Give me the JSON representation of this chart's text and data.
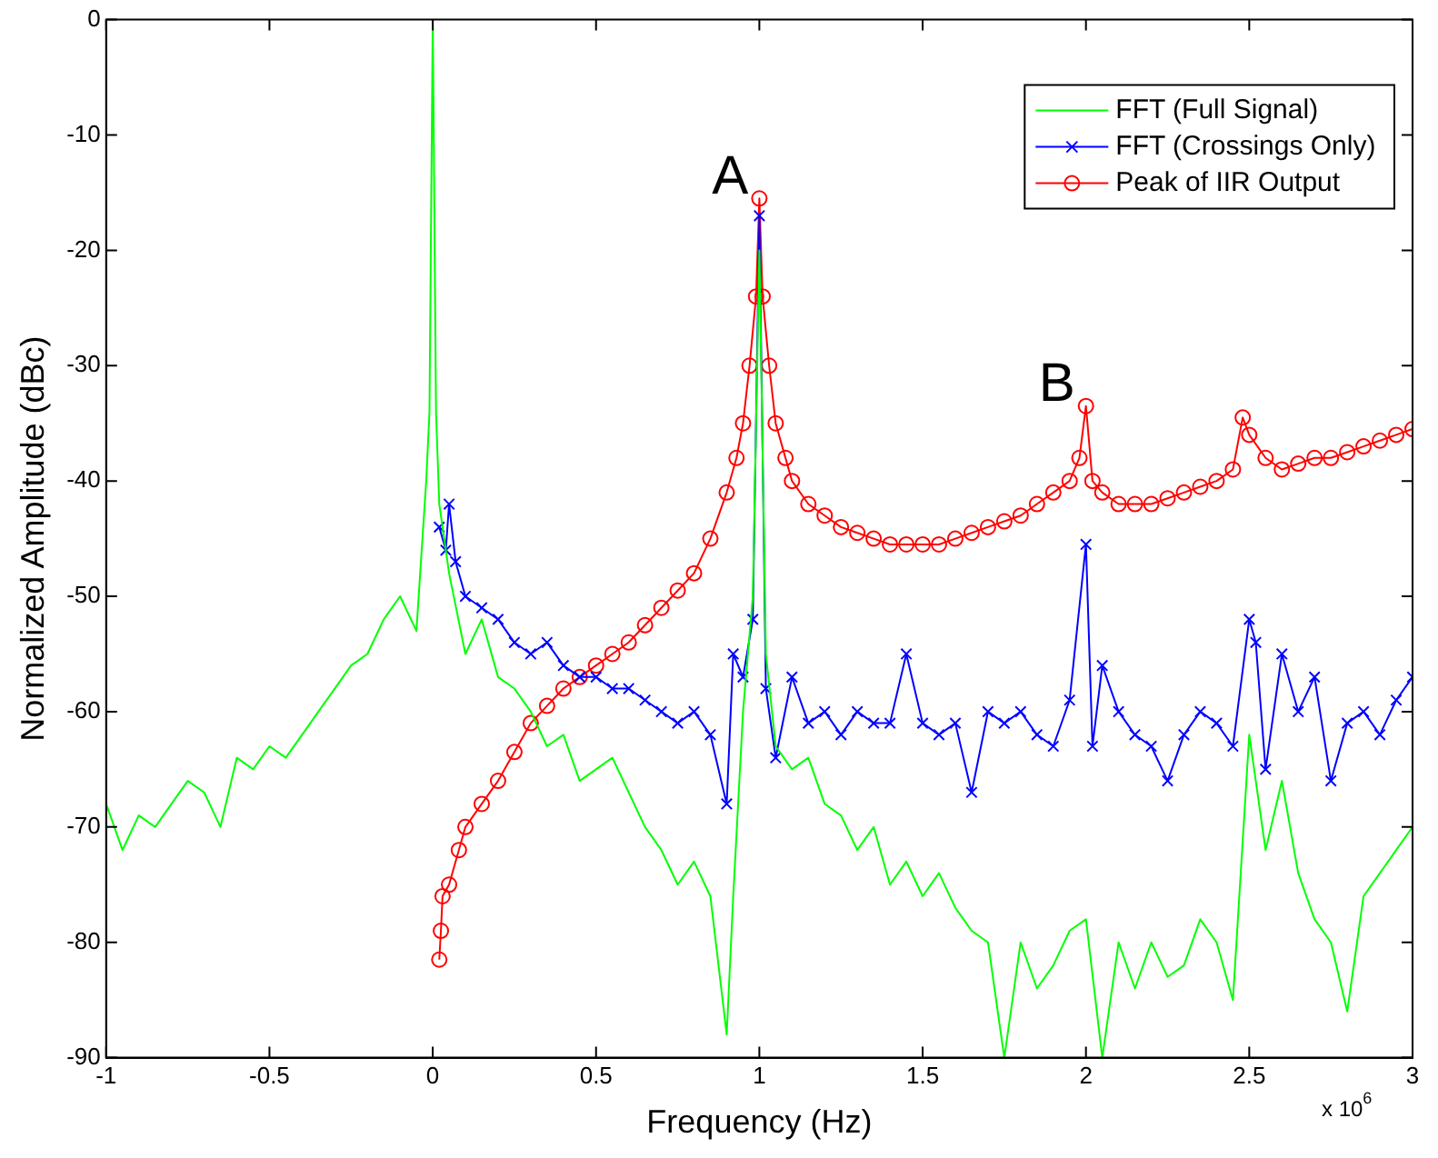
{
  "chart_data": {
    "type": "line",
    "xlabel": "Frequency (Hz)",
    "ylabel": "Normalized Amplitude (dBc)",
    "xlim": [
      -1,
      3
    ],
    "xticks": [
      -1,
      -0.5,
      0,
      0.5,
      1,
      1.5,
      2,
      2.5,
      3
    ],
    "ylim": [
      -90,
      0
    ],
    "yticks": [
      -90,
      -80,
      -70,
      -60,
      -50,
      -40,
      -30,
      -20,
      -10,
      0
    ],
    "grid": false,
    "legend": "top right",
    "annotations": [
      {
        "text": "A",
        "x": 1,
        "y": -15.5
      },
      {
        "text": "B",
        "x": 2,
        "y": -33.5
      },
      "x 10$^{6}$"
    ],
    "series": [
      {
        "name": "FFT (Full Signal)",
        "color": "#00ff00",
        "marker": "none",
        "x": [
          -1,
          -0.95,
          -0.9,
          -0.85,
          -0.8,
          -0.75,
          -0.7,
          -0.65,
          -0.6,
          -0.55,
          -0.5,
          -0.45,
          -0.4,
          -0.35,
          -0.3,
          -0.25,
          -0.2,
          -0.15,
          -0.1,
          -0.05,
          -0.02,
          -0.01,
          0,
          0.01,
          0.02,
          0.05,
          0.1,
          0.15,
          0.2,
          0.25,
          0.3,
          0.35,
          0.4,
          0.45,
          0.5,
          0.55,
          0.6,
          0.65,
          0.7,
          0.75,
          0.8,
          0.85,
          0.9,
          0.92,
          0.95,
          0.98,
          1,
          1.02,
          1.05,
          1.1,
          1.15,
          1.2,
          1.25,
          1.3,
          1.35,
          1.4,
          1.45,
          1.5,
          1.55,
          1.6,
          1.65,
          1.7,
          1.75,
          1.8,
          1.85,
          1.9,
          1.95,
          2,
          2.05,
          2.1,
          2.15,
          2.2,
          2.25,
          2.3,
          2.35,
          2.4,
          2.45,
          2.5,
          2.55,
          2.6,
          2.65,
          2.7,
          2.75,
          2.8,
          2.85,
          2.9,
          2.95,
          3
        ],
        "values": [
          -68,
          -72,
          -69,
          -70,
          -68,
          -66,
          -67,
          -70,
          -64,
          -65,
          -63,
          -64,
          -62,
          -60,
          -58,
          -56,
          -55,
          -52,
          -50,
          -53,
          -40,
          -34,
          0,
          -34,
          -42,
          -48,
          -55,
          -52,
          -57,
          -58,
          -60,
          -63,
          -62,
          -66,
          -65,
          -64,
          -67,
          -70,
          -72,
          -75,
          -73,
          -76,
          -88,
          -76,
          -60,
          -50,
          -20,
          -55,
          -63,
          -65,
          -64,
          -68,
          -69,
          -72,
          -70,
          -75,
          -73,
          -76,
          -74,
          -77,
          -79,
          -80,
          -90,
          -80,
          -84,
          -82,
          -79,
          -78,
          -90,
          -80,
          -84,
          -80,
          -83,
          -82,
          -78,
          -80,
          -85,
          -62,
          -72,
          -66,
          -74,
          -78,
          -80,
          -86,
          -76,
          -74,
          -72,
          -70
        ]
      },
      {
        "name": "FFT (Crossings Only)",
        "color": "#0000ff",
        "marker": "cross",
        "x": [
          0.02,
          0.04,
          0.05,
          0.07,
          0.1,
          0.15,
          0.2,
          0.25,
          0.3,
          0.35,
          0.4,
          0.45,
          0.5,
          0.55,
          0.6,
          0.65,
          0.7,
          0.75,
          0.8,
          0.85,
          0.9,
          0.92,
          0.95,
          0.98,
          1,
          1.02,
          1.05,
          1.1,
          1.15,
          1.2,
          1.25,
          1.3,
          1.35,
          1.4,
          1.45,
          1.5,
          1.55,
          1.6,
          1.65,
          1.7,
          1.75,
          1.8,
          1.85,
          1.9,
          1.95,
          2,
          2.02,
          2.05,
          2.1,
          2.15,
          2.2,
          2.25,
          2.3,
          2.35,
          2.4,
          2.45,
          2.5,
          2.52,
          2.55,
          2.6,
          2.65,
          2.7,
          2.75,
          2.8,
          2.85,
          2.9,
          2.95,
          3
        ],
        "values": [
          -44,
          -46,
          -42,
          -47,
          -50,
          -51,
          -52,
          -54,
          -55,
          -54,
          -56,
          -57,
          -57,
          -58,
          -58,
          -59,
          -60,
          -61,
          -60,
          -62,
          -68,
          -55,
          -57,
          -52,
          -17,
          -58,
          -64,
          -57,
          -61,
          -60,
          -62,
          -60,
          -61,
          -61,
          -55,
          -61,
          -62,
          -61,
          -67,
          -60,
          -61,
          -60,
          -62,
          -63,
          -59,
          -45.5,
          -63,
          -56,
          -60,
          -62,
          -63,
          -66,
          -62,
          -60,
          -61,
          -63,
          -52,
          -54,
          -65,
          -55,
          -60,
          -57,
          -66,
          -61,
          -60,
          -62,
          -59,
          -57
        ]
      },
      {
        "name": "Peak of IIR Output",
        "color": "#ff0000",
        "marker": "circle",
        "x": [
          0.02,
          0.025,
          0.03,
          0.05,
          0.08,
          0.1,
          0.15,
          0.2,
          0.25,
          0.3,
          0.35,
          0.4,
          0.45,
          0.5,
          0.55,
          0.6,
          0.65,
          0.7,
          0.75,
          0.8,
          0.85,
          0.9,
          0.93,
          0.95,
          0.97,
          0.99,
          1,
          1.01,
          1.03,
          1.05,
          1.08,
          1.1,
          1.15,
          1.2,
          1.25,
          1.3,
          1.35,
          1.4,
          1.45,
          1.5,
          1.55,
          1.6,
          1.65,
          1.7,
          1.75,
          1.8,
          1.85,
          1.9,
          1.95,
          1.98,
          2,
          2.02,
          2.05,
          2.1,
          2.15,
          2.2,
          2.25,
          2.3,
          2.35,
          2.4,
          2.45,
          2.48,
          2.5,
          2.55,
          2.6,
          2.65,
          2.7,
          2.75,
          2.8,
          2.85,
          2.9,
          2.95,
          3
        ],
        "values": [
          -81.5,
          -79,
          -76,
          -75,
          -72,
          -70,
          -68,
          -66,
          -63.5,
          -61,
          -59.5,
          -58,
          -57,
          -56,
          -55,
          -54,
          -52.5,
          -51,
          -49.5,
          -48,
          -45,
          -41,
          -38,
          -35,
          -30,
          -24,
          -15.5,
          -24,
          -30,
          -35,
          -38,
          -40,
          -42,
          -43,
          -44,
          -44.5,
          -45,
          -45.5,
          -45.5,
          -45.5,
          -45.5,
          -45,
          -44.5,
          -44,
          -43.5,
          -43,
          -42,
          -41,
          -40,
          -38,
          -33.5,
          -40,
          -41,
          -42,
          -42,
          -42,
          -41.5,
          -41,
          -40.5,
          -40,
          -39,
          -34.5,
          -36,
          -38,
          -39,
          -38.5,
          -38,
          -38,
          -37.5,
          -37,
          -36.5,
          -36,
          -35.5
        ]
      }
    ]
  }
}
